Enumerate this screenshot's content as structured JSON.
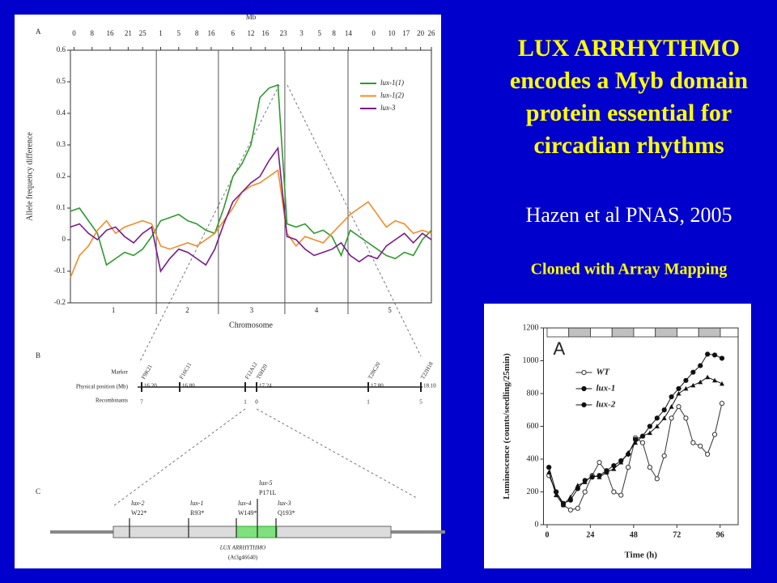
{
  "slide": {
    "title_lines": [
      "LUX ARRHYTHMO",
      "encodes a Myb domain",
      "protein essential for",
      "circadian rhythms"
    ],
    "citation": "Hazen et al PNAS, 2005",
    "note": "Cloned with Array Mapping"
  },
  "chart_data": [
    {
      "type": "line",
      "panel": "A",
      "top_axis_label": "Mb",
      "xlabel": "Chromosome",
      "ylabel": "Allele frequency difference",
      "xlim": [
        0,
        100
      ],
      "ylim": [
        -0.2,
        0.6
      ],
      "yticks": [
        -0.2,
        -0.1,
        0,
        0.1,
        0.2,
        0.3,
        0.4,
        0.5,
        0.6
      ],
      "top_ticks": [
        {
          "value": 1,
          "label": "0"
        },
        {
          "value": 6,
          "label": "8"
        },
        {
          "value": 11,
          "label": "16"
        },
        {
          "value": 16,
          "label": "21"
        },
        {
          "value": 20,
          "label": "25"
        },
        {
          "value": 25,
          "label": "1"
        },
        {
          "value": 30,
          "label": "5"
        },
        {
          "value": 35,
          "label": "8"
        },
        {
          "value": 39,
          "label": "16"
        },
        {
          "value": 45,
          "label": "6"
        },
        {
          "value": 50,
          "label": "12"
        },
        {
          "value": 54,
          "label": "16"
        },
        {
          "value": 59,
          "label": "23"
        },
        {
          "value": 64,
          "label": "3"
        },
        {
          "value": 69,
          "label": "5"
        },
        {
          "value": 73,
          "label": "8"
        },
        {
          "value": 77,
          "label": "14"
        },
        {
          "value": 84,
          "label": "0"
        },
        {
          "value": 89,
          "label": "10"
        },
        {
          "value": 93,
          "label": "17"
        },
        {
          "value": 97,
          "label": "20"
        },
        {
          "value": 100,
          "label": "26"
        }
      ],
      "chromosomes": [
        "1",
        "2",
        "3",
        "4",
        "5"
      ],
      "chromosome_breaks": [
        23.8,
        41,
        59.4,
        76.9
      ],
      "legend": "upper right",
      "x": [
        0,
        2.5,
        5,
        7.5,
        10,
        12.5,
        15,
        17.5,
        20,
        22.5,
        25,
        27.5,
        30,
        32.5,
        35,
        37.5,
        40,
        42.5,
        45,
        47.5,
        50,
        52.5,
        55,
        57.5,
        60,
        62.5,
        65,
        67.5,
        70,
        72.5,
        75,
        77.5,
        80,
        82.5,
        85,
        87.5,
        90,
        92.5,
        95,
        97.5,
        100
      ],
      "series": [
        {
          "name": "lux-1(1)",
          "color": "#2e9a2e",
          "values": [
            0.09,
            0.1,
            0.06,
            0.02,
            -0.08,
            -0.06,
            -0.04,
            -0.05,
            -0.03,
            0.01,
            0.06,
            0.07,
            0.08,
            0.06,
            0.05,
            0.03,
            0.02,
            0.1,
            0.2,
            0.24,
            0.3,
            0.45,
            0.48,
            0.49,
            0.05,
            0.04,
            0.05,
            0.02,
            0.03,
            0.01,
            -0.05,
            0.03,
            0.01,
            -0.01,
            -0.03,
            -0.05,
            -0.06,
            -0.04,
            -0.05,
            0,
            0.03
          ]
        },
        {
          "name": "lux-1(2)",
          "color": "#f28c28",
          "values": [
            -0.12,
            -0.05,
            -0.02,
            0.03,
            0.06,
            0.02,
            0.04,
            0.05,
            0.06,
            0.05,
            -0.02,
            -0.03,
            -0.02,
            -0.01,
            -0.02,
            0,
            0.02,
            0.06,
            0.1,
            0.15,
            0.17,
            0.18,
            0.2,
            0.22,
            0.02,
            -0.02,
            0.01,
            0,
            -0.01,
            0.02,
            0.05,
            0.08,
            0.1,
            0.12,
            0.08,
            0.04,
            0.06,
            0.05,
            0.02,
            0.03,
            0.02
          ]
        },
        {
          "name": "lux-3",
          "color": "#7a1a8a",
          "values": [
            0.04,
            0.05,
            0.02,
            0,
            0.03,
            0.04,
            0.01,
            -0.01,
            0.02,
            0.04,
            -0.1,
            -0.06,
            -0.03,
            -0.04,
            -0.06,
            -0.08,
            -0.03,
            0.05,
            0.12,
            0.15,
            0.18,
            0.2,
            0.25,
            0.29,
            0.01,
            0,
            -0.03,
            -0.05,
            -0.04,
            -0.03,
            -0.01,
            -0.05,
            -0.07,
            -0.05,
            -0.06,
            -0.02,
            0,
            0.02,
            -0.01,
            0.02,
            0
          ]
        }
      ]
    },
    {
      "type": "line",
      "panel": "A",
      "xlabel": "Time (h)",
      "ylabel": "Luminescence (counts/seedling/25min)",
      "xlim": [
        -2,
        106
      ],
      "ylim": [
        0,
        1200
      ],
      "xticks": [
        0,
        24,
        48,
        72,
        96
      ],
      "yticks": [
        0,
        200,
        400,
        600,
        800,
        1000,
        1200
      ],
      "legend": "upper left",
      "x": [
        1,
        5,
        9,
        13,
        17,
        21,
        25,
        29,
        33,
        37,
        41,
        45,
        49,
        53,
        57,
        61,
        65,
        69,
        73,
        77,
        81,
        85,
        89,
        93,
        97
      ],
      "series": [
        {
          "name": "WT",
          "color": "#333333",
          "marker": "open-circle",
          "values": [
            300,
            200,
            120,
            90,
            100,
            200,
            300,
            380,
            320,
            200,
            180,
            350,
            530,
            500,
            350,
            280,
            420,
            650,
            720,
            650,
            500,
            480,
            430,
            550,
            740
          ]
        },
        {
          "name": "lux-1",
          "color": "#111111",
          "marker": "circle",
          "values": [
            350,
            200,
            130,
            150,
            220,
            270,
            290,
            300,
            330,
            360,
            390,
            430,
            520,
            540,
            600,
            650,
            700,
            780,
            830,
            880,
            930,
            970,
            1040,
            1035,
            1015
          ]
        },
        {
          "name": "lux-2",
          "color": "#111111",
          "marker": "triangle",
          "values": [
            320,
            180,
            120,
            170,
            240,
            260,
            300,
            290,
            320,
            340,
            380,
            440,
            500,
            540,
            560,
            600,
            650,
            720,
            800,
            830,
            850,
            870,
            900,
            880,
            860
          ]
        }
      ]
    }
  ],
  "map": {
    "panel": "B",
    "row_labels": [
      "Marker",
      "Physical position (Mb)",
      "Recombinants"
    ],
    "markers": [
      {
        "name": "F9K21",
        "position": "16.20",
        "recombinants": "7"
      },
      {
        "name": "F16C11",
        "position": "16.80"
      },
      {
        "name": "F12A12",
        "recombinants": "1"
      },
      {
        "name": "T6H20",
        "position": "17.24",
        "recombinants": "0"
      },
      {
        "name": "T28C20",
        "position": "17.80",
        "recombinants": "1"
      },
      {
        "name": "T22H18",
        "position": "18.10",
        "recombinants": "5"
      }
    ]
  },
  "gene": {
    "panel": "C",
    "name": "LUX ARRHYTHMO",
    "locus": "(At3g46640)",
    "mutations": [
      {
        "allele": "lux-2",
        "change": "W22*"
      },
      {
        "allele": "lux-1",
        "change": "R93*"
      },
      {
        "allele": "lux-4",
        "change": "W149*"
      },
      {
        "allele": "lux-5",
        "change": "P171L"
      },
      {
        "allele": "lux-3",
        "change": "Q193*"
      }
    ]
  }
}
